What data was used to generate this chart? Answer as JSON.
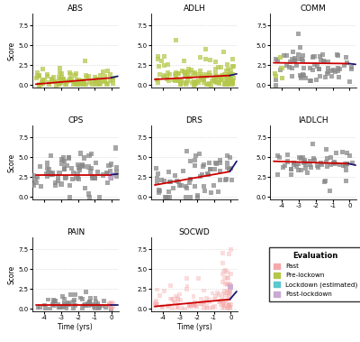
{
  "panels": [
    "ABS",
    "ADLH",
    "COMM",
    "CPS",
    "DRS",
    "IADLCH",
    "PAIN",
    "SOCWD"
  ],
  "ylim": [
    -0.3,
    9.0
  ],
  "yticks": [
    0.0,
    2.5,
    5.0,
    7.5
  ],
  "xlim": [
    -4.7,
    0.4
  ],
  "xticks": [
    -4,
    -3,
    -2,
    -1,
    0
  ],
  "colors": {
    "past": "#F4A9A8",
    "pre_lockdown": "#B5C74A",
    "lockdown": "#5BC8D0",
    "post_lockdown": "#C9A9D4",
    "grey": "#888888",
    "red_line": "#CC0000",
    "blue_line": "#191970"
  },
  "ylabel": "Score",
  "xlabel": "Time (yrs)",
  "legend_title": "Evaluation",
  "legend_items": [
    "Past",
    "Pre-lockown",
    "Lockdown (estimated)",
    "Post-lockdown"
  ],
  "legend_colors": [
    "#F4A9A8",
    "#B5C74A",
    "#5BC8D0",
    "#C9A9D4"
  ],
  "background_color": "#FFFFFF",
  "grid_color": "#C8C8C8",
  "panels_config": {
    "ABS": {
      "scatter_color": "pre_lockdown",
      "scatter_color2": null,
      "red_x": [
        -4.5,
        -0.05
      ],
      "red_y": [
        0.1,
        0.9
      ],
      "blue_x": [
        -0.05,
        0.35
      ],
      "blue_y": [
        0.9,
        1.1
      ],
      "scatter_xmean": -2.0,
      "scatter_ymean": 1.2,
      "scatter_xstd": 1.3,
      "scatter_ystd": 1.4,
      "scatter_ymin": 0.0,
      "scatter_ymax": 6.0,
      "n_scatter": 120,
      "second_color": null,
      "second_n": 0,
      "second_ymean": 0,
      "second_ystd": 0
    },
    "ADLH": {
      "scatter_color": "pre_lockdown",
      "red_x": [
        -4.5,
        -0.05
      ],
      "red_y": [
        0.7,
        1.2
      ],
      "blue_x": [
        -0.05,
        0.35
      ],
      "blue_y": [
        1.2,
        1.4
      ],
      "scatter_xmean": -1.5,
      "scatter_ymean": 1.5,
      "scatter_xstd": 1.3,
      "scatter_ystd": 1.5,
      "scatter_ymin": 0.0,
      "scatter_ymax": 8.0,
      "n_scatter": 130
    },
    "COMM": {
      "scatter_color": "grey",
      "red_x": [
        -4.5,
        -0.05
      ],
      "red_y": [
        2.8,
        2.7
      ],
      "blue_x": [
        -0.05,
        0.35
      ],
      "blue_y": [
        2.7,
        2.6
      ],
      "scatter_xmean": -2.0,
      "scatter_ymean": 2.5,
      "scatter_xstd": 1.3,
      "scatter_ystd": 1.3,
      "scatter_ymin": 0.0,
      "scatter_ymax": 7.8,
      "n_scatter": 80
    },
    "CPS": {
      "scatter_color": "grey",
      "red_x": [
        -4.5,
        -0.05
      ],
      "red_y": [
        2.8,
        2.8
      ],
      "blue_x": [
        -0.05,
        0.35
      ],
      "blue_y": [
        2.8,
        2.9
      ],
      "scatter_xmean": -2.0,
      "scatter_ymean": 3.0,
      "scatter_xstd": 1.3,
      "scatter_ystd": 1.3,
      "scatter_ymin": 0.0,
      "scatter_ymax": 8.0,
      "n_scatter": 80,
      "post_lockdown": true
    },
    "DRS": {
      "scatter_color": "grey",
      "red_x": [
        -4.5,
        -0.05
      ],
      "red_y": [
        1.5,
        3.2
      ],
      "blue_x": [
        -0.05,
        0.35
      ],
      "blue_y": [
        3.2,
        4.5
      ],
      "scatter_xmean": -1.5,
      "scatter_ymean": 3.5,
      "scatter_xstd": 1.2,
      "scatter_ystd": 1.8,
      "scatter_ymin": 0.0,
      "scatter_ymax": 8.0,
      "n_scatter": 80
    },
    "IADLCH": {
      "scatter_color": "grey",
      "red_x": [
        -4.5,
        -0.05
      ],
      "red_y": [
        4.5,
        4.2
      ],
      "blue_x": [
        -0.05,
        0.35
      ],
      "blue_y": [
        4.2,
        4.0
      ],
      "scatter_xmean": -2.0,
      "scatter_ymean": 4.2,
      "scatter_xstd": 1.3,
      "scatter_ystd": 0.9,
      "scatter_ymin": 0.0,
      "scatter_ymax": 7.5,
      "n_scatter": 60
    },
    "PAIN": {
      "scatter_color": "grey",
      "red_x": [
        -4.5,
        -0.05
      ],
      "red_y": [
        0.5,
        0.5
      ],
      "blue_x": [
        -0.05,
        0.35
      ],
      "blue_y": [
        0.5,
        0.5
      ],
      "scatter_xmean": -2.0,
      "scatter_ymean": 0.8,
      "scatter_xstd": 1.3,
      "scatter_ystd": 0.6,
      "scatter_ymin": 0.0,
      "scatter_ymax": 2.2,
      "n_scatter": 55,
      "past_lockdown": true
    },
    "SOCWD": {
      "scatter_color": "past",
      "red_x": [
        -4.5,
        -0.05
      ],
      "red_y": [
        0.3,
        1.2
      ],
      "blue_x": [
        -0.05,
        0.35
      ],
      "blue_y": [
        1.2,
        2.2
      ],
      "scatter_xmean": -0.5,
      "scatter_ymean": 1.5,
      "scatter_xstd": 0.8,
      "scatter_ystd": 2.0,
      "scatter_ymin": 0.0,
      "scatter_ymax": 7.5,
      "n_scatter": 80,
      "post_lockdown": true
    }
  }
}
